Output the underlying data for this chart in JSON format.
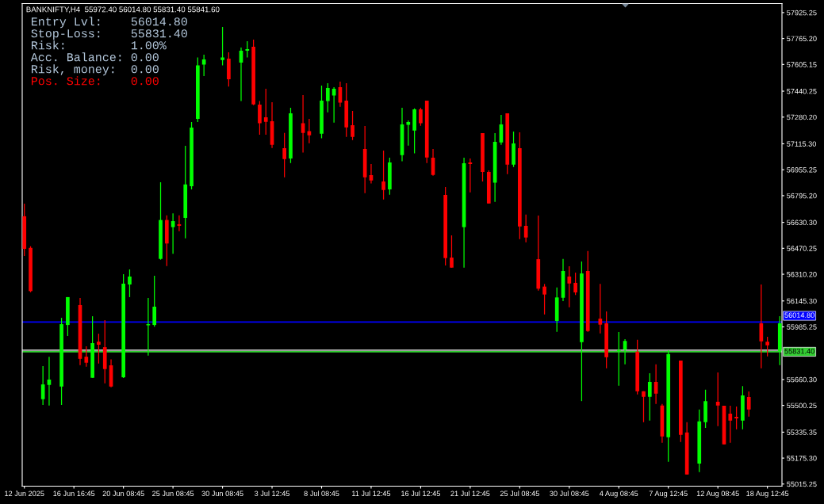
{
  "chart_data": {
    "type": "candlestick",
    "title": "BANKNIFTY,H4  55972.40 56014.80 55831.40 55841.60",
    "annotations": [
      "Entry Lvl:    56014.80",
      "Stop-Loss:    55831.40",
      "Risk:         1.00%",
      "Acc. Balance: 0.00",
      "Risk, money:  0.00",
      "Pos. Size:    0.00"
    ],
    "categories": [
      "12 Jun 2025",
      null,
      null,
      null,
      null,
      null,
      null,
      null,
      "16 Jun 16:45",
      null,
      null,
      null,
      null,
      null,
      null,
      null,
      "20 Jun 08:45",
      null,
      null,
      null,
      null,
      null,
      null,
      null,
      "25 Jun 08:45",
      null,
      null,
      null,
      null,
      null,
      null,
      null,
      "30 Jun 08:45",
      null,
      null,
      null,
      null,
      null,
      null,
      null,
      "3 Jul 12:45",
      null,
      null,
      null,
      null,
      null,
      null,
      null,
      "8 Jul 08:45",
      null,
      null,
      null,
      null,
      null,
      null,
      null,
      "11 Jul 12:45",
      null,
      null,
      null,
      null,
      null,
      null,
      null,
      "16 Jul 12:45",
      null,
      null,
      null,
      null,
      null,
      null,
      null,
      "21 Jul 12:45",
      null,
      null,
      null,
      null,
      null,
      null,
      null,
      "25 Jul 08:45",
      null,
      null,
      null,
      null,
      null,
      null,
      null,
      "30 Jul 08:45",
      null,
      null,
      null,
      null,
      null,
      null,
      null,
      "4 Aug 08:45",
      null,
      null,
      null,
      null,
      null,
      null,
      null,
      "7 Aug 12:45",
      null,
      null,
      null,
      null,
      null,
      null,
      null,
      "12 Aug 08:45",
      null,
      null,
      null,
      null,
      null,
      null,
      null,
      "18 Aug 12:45",
      null,
      null
    ],
    "ohlc": [
      [
        56668,
        56746,
        56423,
        56467
      ],
      [
        56473,
        56483,
        56199,
        56206
      ],
      null,
      [
        55539,
        55743,
        55503,
        55630
      ],
      [
        55627,
        55801,
        55500,
        55660
      ],
      null,
      [
        55617,
        56041,
        55503,
        56002
      ],
      [
        55997,
        56169,
        55929,
        56169
      ],
      null,
      [
        56120,
        56164,
        55749,
        55788
      ],
      [
        55801,
        55865,
        55739,
        55764
      ],
      [
        55671,
        56051,
        55671,
        55885
      ],
      [
        55894,
        55943,
        55759,
        55875
      ],
      [
        55860,
        56027,
        55637,
        55725
      ],
      [
        55748,
        55785,
        55612,
        55617
      ],
      null,
      [
        55674,
        56310,
        55670,
        56252
      ],
      [
        56247,
        56340,
        56169,
        56296
      ],
      null,
      null,
      [
        55995,
        56164,
        55808,
        56002
      ],
      [
        55997,
        56301,
        55987,
        56110
      ],
      [
        56405,
        56878,
        56400,
        56645
      ],
      [
        56645,
        56674,
        56361,
        56500
      ],
      [
        56601,
        56686,
        56437,
        56638
      ],
      [
        56619,
        56674,
        56576,
        56609
      ],
      [
        56658,
        57103,
        56532,
        56865
      ],
      [
        56853,
        57250,
        56834,
        57216
      ],
      [
        57269,
        57648,
        57250,
        57599
      ],
      [
        57604,
        57666,
        57534,
        57636
      ],
      null,
      null,
      [
        57633,
        57837,
        57599,
        57648
      ],
      [
        57641,
        57680,
        57469,
        57514
      ],
      null,
      [
        57617,
        57710,
        57379,
        57690
      ],
      [
        57690,
        57749,
        57648,
        57700
      ],
      [
        57715,
        57759,
        57354,
        57359
      ],
      [
        57357,
        57379,
        57172,
        57242
      ],
      [
        57279,
        57455,
        57172,
        57251
      ],
      [
        57255,
        57372,
        57090,
        57109
      ],
      null,
      [
        57088,
        57183,
        56909,
        57021
      ],
      [
        57025,
        57338,
        56997,
        57304
      ],
      null,
      [
        57242,
        57416,
        57061,
        57183
      ],
      [
        57193,
        57269,
        57119,
        57168
      ],
      null,
      [
        57178,
        57475,
        57149,
        57382
      ],
      [
        57379,
        57490,
        57310,
        57460
      ],
      [
        57413,
        57465,
        57246,
        57455
      ],
      [
        57465,
        57499,
        57344,
        57369
      ],
      [
        57382,
        57490,
        57158,
        57217
      ],
      [
        57230,
        57318,
        57139,
        57158
      ],
      null,
      [
        57083,
        57225,
        56811,
        56909
      ],
      [
        56922,
        56990,
        56870,
        56889
      ],
      null,
      [
        56883,
        57074,
        56772,
        56830
      ],
      [
        56834,
        57030,
        56801,
        57000
      ],
      null,
      [
        57046,
        57338,
        57007,
        57235
      ],
      [
        57232,
        57260,
        57104,
        57250
      ],
      [
        57197,
        57334,
        57056,
        57328
      ],
      [
        57328,
        57338,
        57227,
        57242
      ],
      [
        57382,
        57382,
        56997,
        57031
      ],
      [
        57030,
        57083,
        56918,
        56923
      ],
      null,
      [
        56800,
        56849,
        56364,
        56410
      ],
      [
        56413,
        56550,
        56351,
        56351
      ],
      null,
      [
        56601,
        57030,
        56351,
        56995
      ],
      [
        57000,
        57025,
        56816,
        56990
      ],
      null,
      [
        57181,
        57181,
        56883,
        56942
      ],
      [
        56942,
        56951,
        56747,
        56747
      ],
      [
        56875,
        57181,
        56757,
        57128
      ],
      [
        57124,
        57294,
        57109,
        57235
      ],
      [
        57304,
        57304,
        56928,
        56987
      ],
      [
        56987,
        57191,
        56972,
        57118
      ],
      [
        57088,
        57186,
        56527,
        56605
      ],
      [
        56609,
        56679,
        56508,
        56537
      ],
      null,
      [
        56403,
        56672,
        56209,
        56221
      ],
      [
        56234,
        56250,
        56062,
        56185
      ],
      null,
      [
        56022,
        56229,
        55955,
        56167
      ],
      [
        56165,
        56405,
        56144,
        56330
      ],
      [
        56296,
        56359,
        56106,
        56253
      ],
      [
        56257,
        56320,
        56182,
        56198
      ],
      [
        55891,
        56389,
        55527,
        56315
      ],
      [
        56330,
        56454,
        55955,
        55960
      ],
      null,
      [
        56036,
        56250,
        55945,
        55999
      ],
      [
        56007,
        56080,
        55730,
        55798
      ],
      null,
      [
        55836,
        55953,
        55622,
        55842
      ],
      [
        55844,
        55909,
        55754,
        55899
      ],
      null,
      [
        55832,
        55906,
        55568,
        55588
      ],
      [
        55588,
        55588,
        55397,
        55553
      ],
      [
        55553,
        55699,
        55407,
        55645
      ],
      [
        55645,
        55754,
        55509,
        55573
      ],
      [
        55500,
        55509,
        55270,
        55309
      ],
      [
        55304,
        55841,
        55152,
        55818
      ],
      null,
      [
        55777,
        55777,
        55275,
        55319
      ],
      [
        55333,
        55397,
        55074,
        55074
      ],
      null,
      [
        55142,
        55475,
        55089,
        55402
      ],
      [
        55397,
        55597,
        55361,
        55527
      ],
      null,
      [
        55523,
        55704,
        55372,
        55500
      ],
      [
        55498,
        55498,
        55260,
        55260
      ],
      [
        55449,
        55498,
        55270,
        55407
      ],
      [
        55430,
        55493,
        55353,
        55420
      ],
      [
        55407,
        55620,
        55353,
        55562
      ],
      [
        55552,
        55586,
        55431,
        55475
      ],
      null,
      [
        56007,
        56247,
        55730,
        55896
      ],
      [
        55894,
        55924,
        55803,
        55871
      ],
      null,
      [
        55837,
        56051,
        55749,
        56007
      ]
    ],
    "colors": [
      "#ff0000",
      "#ff0000",
      null,
      "#00ff00",
      "#00ff00",
      null,
      "#00ff00",
      "#00ff00",
      null,
      "#ff0000",
      "#ff0000",
      "#00ff00",
      "#ff0000",
      "#ff0000",
      "#ff0000",
      null,
      "#00ff00",
      "#00ff00",
      null,
      null,
      "#00ff00",
      "#00ff00",
      "#00ff00",
      "#ff0000",
      "#00ff00",
      "#ff0000",
      "#00ff00",
      "#00ff00",
      "#00ff00",
      "#00ff00",
      null,
      null,
      "#00ff00",
      "#ff0000",
      null,
      "#00ff00",
      "#00ff00",
      "#ff0000",
      "#ff0000",
      "#ff0000",
      "#ff0000",
      null,
      "#ff0000",
      "#00ff00",
      null,
      "#ff0000",
      "#ff0000",
      null,
      "#00ff00",
      "#00ff00",
      "#00ff00",
      "#ff0000",
      "#ff0000",
      "#ff0000",
      null,
      "#ff0000",
      "#ff0000",
      null,
      "#ff0000",
      "#00ff00",
      null,
      "#00ff00",
      "#00ff00",
      "#00ff00",
      "#ff0000",
      "#ff0000",
      "#ff0000",
      null,
      "#ff0000",
      "#ff0000",
      null,
      "#00ff00",
      "#ff0000",
      null,
      "#ff0000",
      "#ff0000",
      "#00ff00",
      "#00ff00",
      "#ff0000",
      "#00ff00",
      "#ff0000",
      "#ff0000",
      null,
      "#ff0000",
      "#ff0000",
      null,
      "#00ff00",
      "#00ff00",
      "#ff0000",
      "#ff0000",
      "#00ff00",
      "#ff0000",
      null,
      "#ff0000",
      "#ff0000",
      null,
      "#00ff00",
      "#00ff00",
      null,
      "#ff0000",
      "#ff0000",
      "#00ff00",
      "#ff0000",
      "#ff0000",
      "#00ff00",
      null,
      "#ff0000",
      "#ff0000",
      null,
      "#00ff00",
      "#00ff00",
      null,
      "#ff0000",
      "#ff0000",
      "#ff0000",
      "#ff0000",
      "#00ff00",
      "#ff0000",
      null,
      "#ff0000",
      "#ff0000",
      null,
      "#00ff00"
    ],
    "ylim": [
      55002,
      57981
    ],
    "yticks": [
      57925.25,
      {
        "value": 57765.2,
        "label": "57765.20"
      },
      57605.15,
      57440.25,
      {
        "value": 57280.2,
        "label": "57280.20"
      },
      {
        "value": 57115.3,
        "label": "57115.30"
      },
      56955.25,
      {
        "value": 56795.2,
        "label": "56795.20"
      },
      {
        "value": 56630.3,
        "label": "56630.30"
      },
      56470.25,
      {
        "value": 56310.2,
        "label": "56310.20"
      },
      {
        "value": 56145.3,
        "label": "56145.30"
      },
      55985.25,
      {
        "value": 55660.3,
        "label": "55660.30"
      },
      55500.25,
      55335.35,
      {
        "value": 55175.3,
        "label": "55175.30"
      },
      55015.25
    ],
    "ref_lines": [
      {
        "axis": "y",
        "value": 56014.8,
        "label": "56014.80",
        "color": "#0000ff"
      },
      {
        "axis": "y",
        "value": 55841.6,
        "color": "#c0c0c0"
      },
      {
        "axis": "y",
        "value": 55831.4,
        "label": "55831.40",
        "color": "#32cd32"
      }
    ]
  }
}
